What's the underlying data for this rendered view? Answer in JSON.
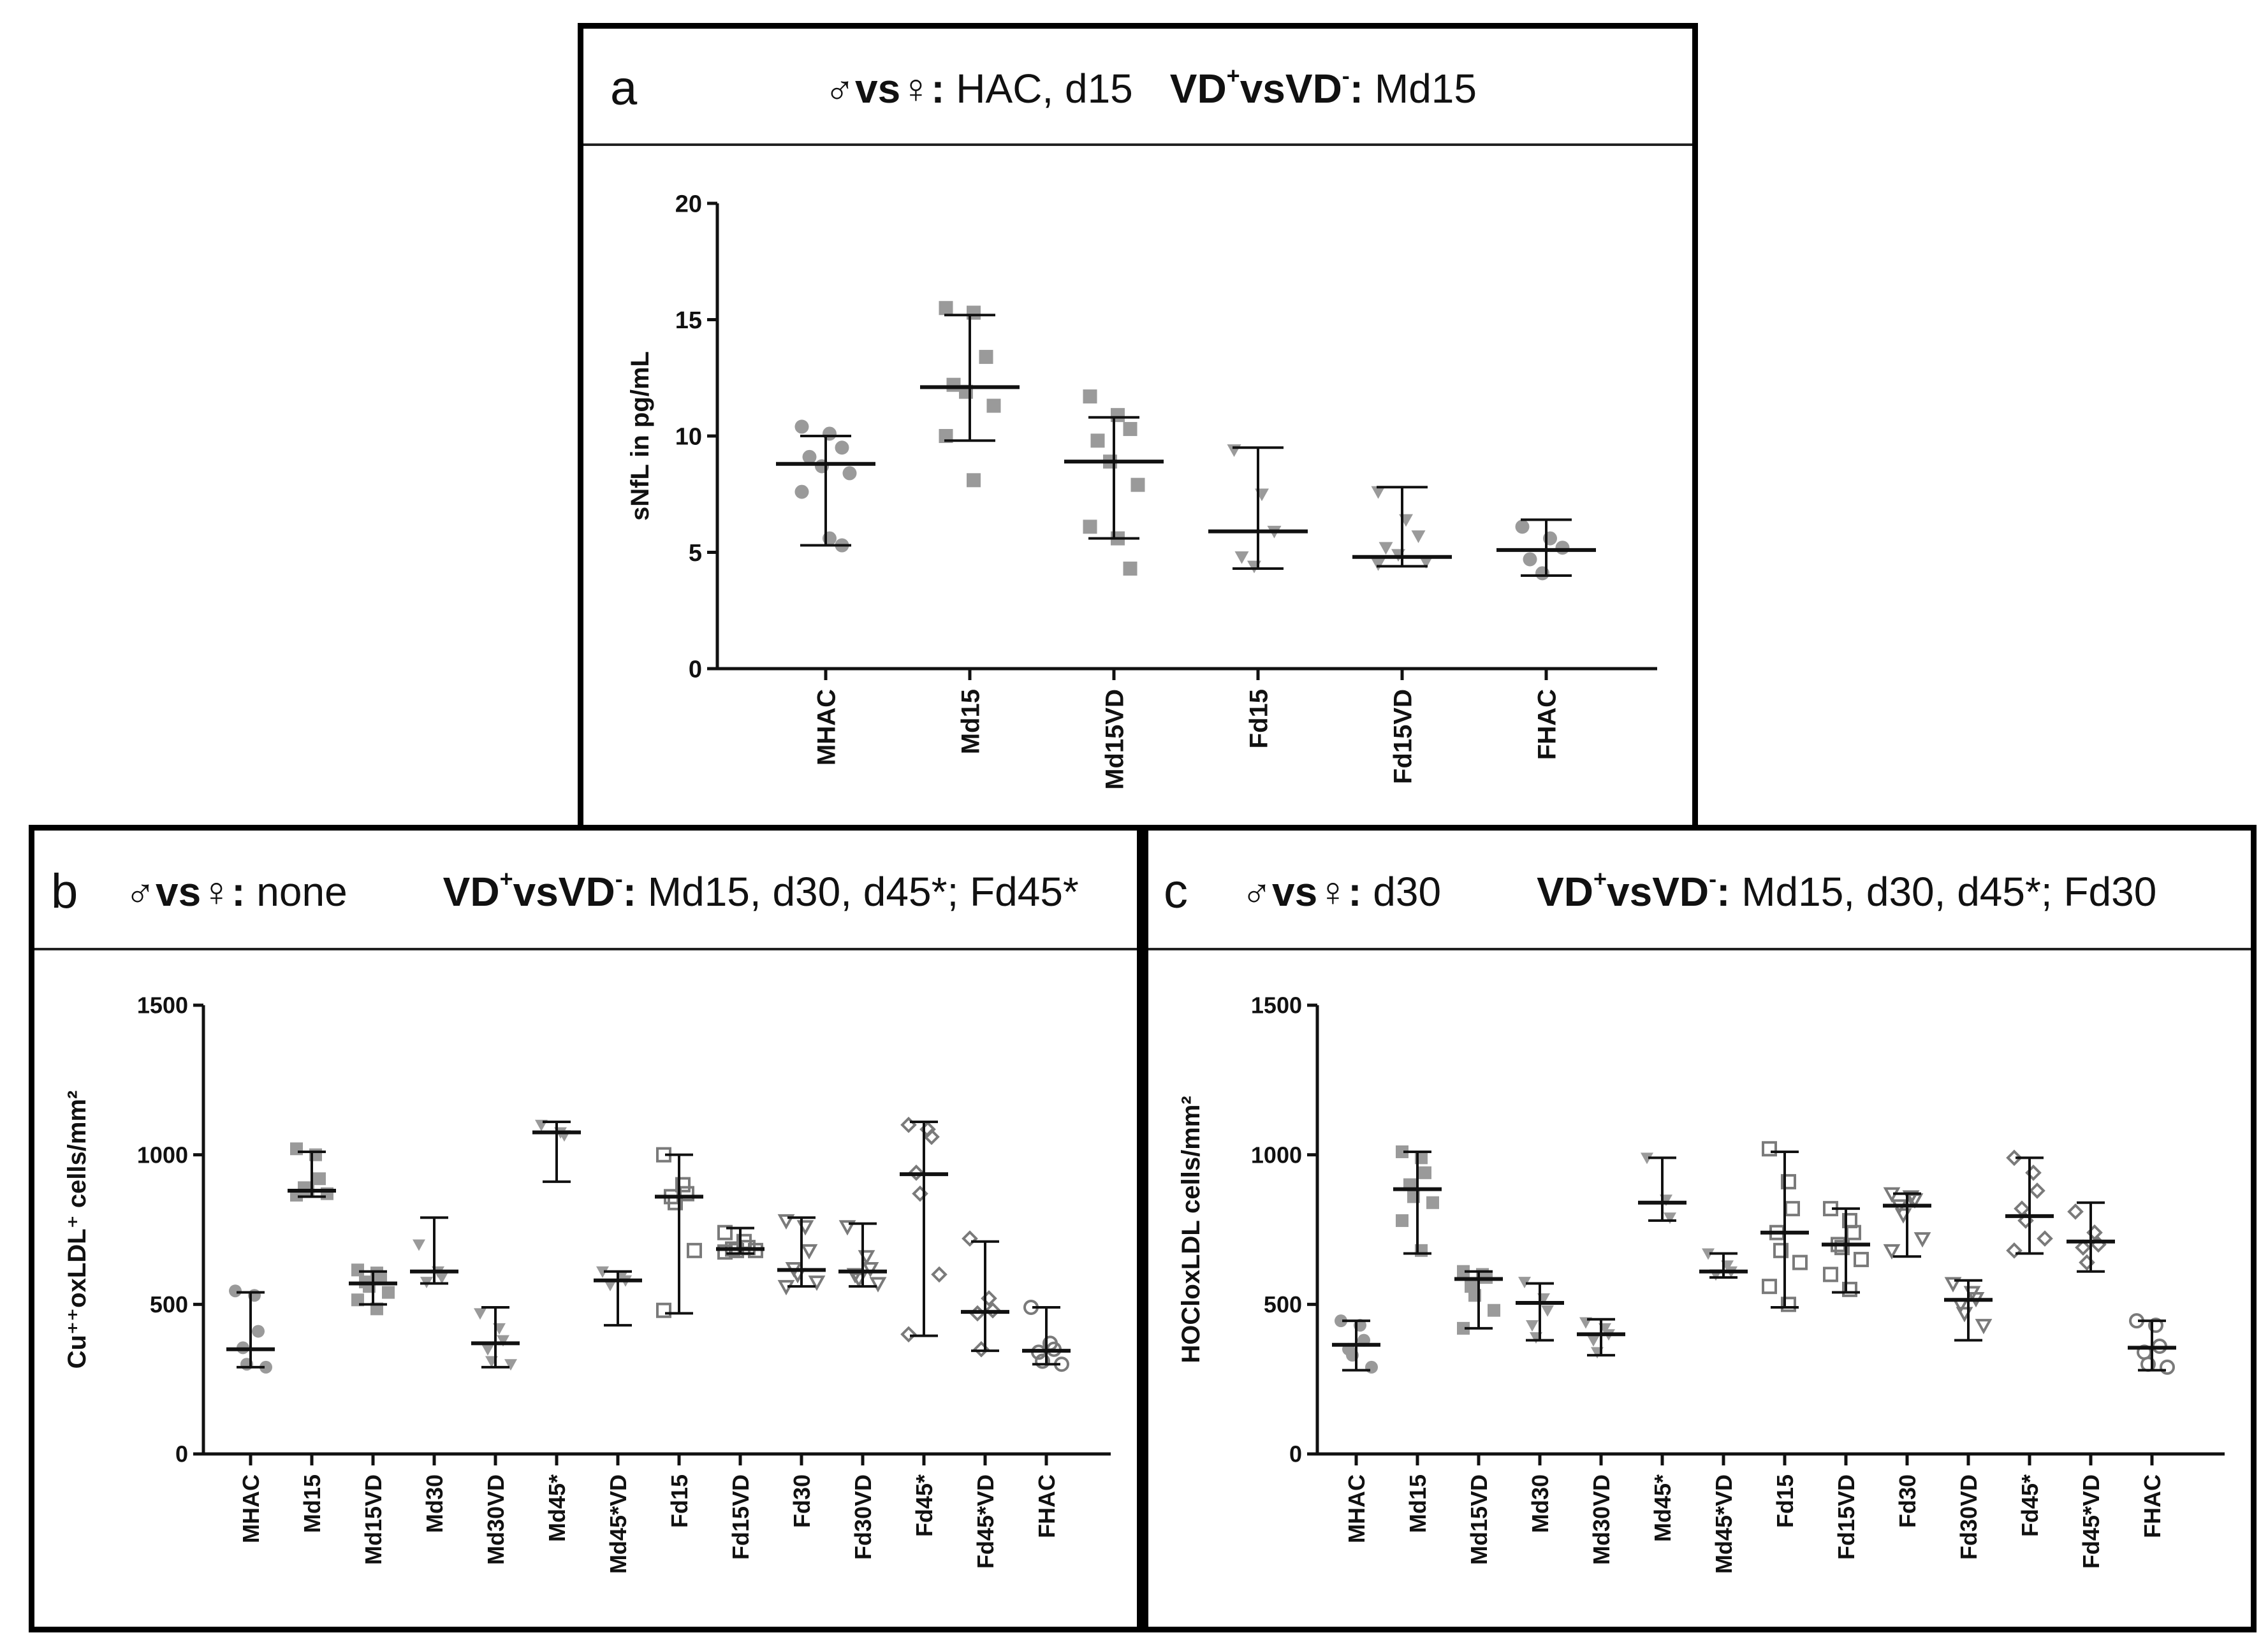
{
  "panels": {
    "a": {
      "letter": "a",
      "sex_label": "♂vs♀:",
      "sex_value": " HAC, d15",
      "vd_pos": "VD",
      "vd_sup_pos": "+",
      "vs": "vs",
      "vd_neg": "VD",
      "vd_sup_neg": "-",
      "vd_colon": ":",
      "vd_value": " Md15"
    },
    "b": {
      "letter": "b",
      "sex_label": "♂vs♀:",
      "sex_value": " none",
      "vd_pos": "VD",
      "vd_sup_pos": "+",
      "vs": "vs",
      "vd_neg": "VD",
      "vd_sup_neg": "-",
      "vd_colon": ":",
      "vd_value": " Md15, d30, d45*; Fd45*"
    },
    "c": {
      "letter": "c",
      "sex_label": "♂vs♀:",
      "sex_value": " d30",
      "vd_pos": "VD",
      "vd_sup_pos": "+",
      "vs": "vs",
      "vd_neg": "VD",
      "vd_sup_neg": "-",
      "vd_colon": ":",
      "vd_value": " Md15, d30, d45*; Fd30"
    }
  },
  "chart_data": [
    {
      "id": "a",
      "type": "scatter",
      "ylabel": "sNfL in pg/mL",
      "ylim": [
        0,
        20
      ],
      "yticks": [
        0,
        5,
        10,
        15,
        20
      ],
      "categories": [
        "MHAC",
        "Md15",
        "Md15VD",
        "Fd15",
        "Fd15VD",
        "FHAC"
      ],
      "groups": [
        {
          "name": "MHAC",
          "marker": "circle-filled",
          "color": "#9a9a9a",
          "points": [
            10.4,
            10.1,
            9.5,
            9.1,
            8.7,
            8.4,
            7.6,
            5.6,
            5.3
          ],
          "median": 8.8,
          "ci": [
            5.3,
            10.0
          ]
        },
        {
          "name": "Md15",
          "marker": "square-filled",
          "color": "#9a9a9a",
          "points": [
            15.5,
            15.3,
            13.4,
            12.2,
            11.9,
            11.3,
            10.0,
            8.1
          ],
          "median": 12.1,
          "ci": [
            9.8,
            15.2
          ]
        },
        {
          "name": "Md15VD",
          "marker": "square-filled",
          "color": "#9a9a9a",
          "points": [
            11.7,
            10.9,
            10.3,
            9.8,
            8.9,
            7.9,
            6.1,
            5.6,
            4.3
          ],
          "median": 8.9,
          "ci": [
            5.6,
            10.8
          ]
        },
        {
          "name": "Fd15",
          "marker": "triangle-down-filled",
          "color": "#9a9a9a",
          "points": [
            9.4,
            7.5,
            5.9,
            4.8,
            4.4
          ],
          "median": 5.9,
          "ci": [
            4.3,
            9.5
          ]
        },
        {
          "name": "Fd15VD",
          "marker": "triangle-down-filled",
          "color": "#9a9a9a",
          "points": [
            7.6,
            6.4,
            5.7,
            5.2,
            4.9,
            4.6,
            4.5
          ],
          "median": 4.8,
          "ci": [
            4.4,
            7.8
          ]
        },
        {
          "name": "FHAC",
          "marker": "circle-filled",
          "color": "#9a9a9a",
          "points": [
            6.1,
            5.6,
            5.2,
            4.7,
            4.1
          ],
          "median": 5.1,
          "ci": [
            4.0,
            6.4
          ]
        }
      ]
    },
    {
      "id": "b",
      "type": "scatter",
      "ylabel": "Cu⁺⁺oxLDL⁺ cells/mm²",
      "ylim": [
        0,
        1500
      ],
      "yticks": [
        0,
        500,
        1000,
        1500
      ],
      "categories": [
        "MHAC",
        "Md15",
        "Md15VD",
        "Md30",
        "Md30VD",
        "Md45*",
        "Md45*VD",
        "Fd15",
        "Fd15VD",
        "Fd30",
        "Fd30VD",
        "Fd45*",
        "Fd45*VD",
        "FHAC"
      ],
      "groups": [
        {
          "name": "MHAC",
          "marker": "circle-filled",
          "color": "#9a9a9a",
          "points": [
            545,
            530,
            410,
            355,
            300,
            290
          ],
          "median": 350,
          "ci": [
            290,
            540
          ]
        },
        {
          "name": "Md15",
          "marker": "square-filled",
          "color": "#9a9a9a",
          "points": [
            1020,
            1000,
            920,
            890,
            880,
            870,
            865
          ],
          "median": 880,
          "ci": [
            860,
            1010
          ]
        },
        {
          "name": "Md15VD",
          "marker": "square-filled",
          "color": "#9a9a9a",
          "points": [
            615,
            605,
            590,
            575,
            560,
            540,
            515,
            485
          ],
          "median": 570,
          "ci": [
            500,
            610
          ]
        },
        {
          "name": "Md30",
          "marker": "triangle-down-filled",
          "color": "#9a9a9a",
          "points": [
            700,
            610,
            590,
            575
          ],
          "median": 610,
          "ci": [
            570,
            790
          ]
        },
        {
          "name": "Md30VD",
          "marker": "triangle-down-filled",
          "color": "#9a9a9a",
          "points": [
            470,
            420,
            380,
            350,
            310,
            300
          ],
          "median": 370,
          "ci": [
            290,
            490
          ]
        },
        {
          "name": "Md45*",
          "marker": "triangle-down-filled",
          "color": "#9a9a9a",
          "points": [
            1100,
            1075,
            1065
          ],
          "median": 1075,
          "ci": [
            910,
            1110
          ]
        },
        {
          "name": "Md45*VD",
          "marker": "triangle-down-filled",
          "color": "#9a9a9a",
          "points": [
            610,
            595,
            580,
            565
          ],
          "median": 580,
          "ci": [
            430,
            610
          ]
        },
        {
          "name": "Fd15",
          "marker": "square-open",
          "color": "#7a7a7a",
          "points": [
            1000,
            900,
            870,
            860,
            840,
            680,
            480
          ],
          "median": 860,
          "ci": [
            470,
            1000
          ]
        },
        {
          "name": "Fd15VD",
          "marker": "square-open",
          "color": "#7a7a7a",
          "points": [
            740,
            710,
            690,
            685,
            680,
            680,
            675
          ],
          "median": 685,
          "ci": [
            670,
            755
          ]
        },
        {
          "name": "Fd30",
          "marker": "triangle-down-open",
          "color": "#7a7a7a",
          "points": [
            780,
            760,
            680,
            620,
            600,
            575,
            560
          ],
          "median": 615,
          "ci": [
            560,
            790
          ]
        },
        {
          "name": "Fd30VD",
          "marker": "triangle-down-open",
          "color": "#7a7a7a",
          "points": [
            760,
            660,
            620,
            600,
            585,
            570
          ],
          "median": 610,
          "ci": [
            560,
            770
          ]
        },
        {
          "name": "Fd45*",
          "marker": "diamond-open",
          "color": "#7a7a7a",
          "points": [
            1100,
            1085,
            1060,
            940,
            870,
            600,
            400
          ],
          "median": 935,
          "ci": [
            395,
            1110
          ]
        },
        {
          "name": "Fd45*VD",
          "marker": "diamond-open",
          "color": "#7a7a7a",
          "points": [
            720,
            520,
            480,
            470,
            350
          ],
          "median": 475,
          "ci": [
            345,
            710
          ]
        },
        {
          "name": "FHAC",
          "marker": "circle-open",
          "color": "#7a7a7a",
          "points": [
            490,
            370,
            350,
            340,
            310,
            300
          ],
          "median": 345,
          "ci": [
            300,
            490
          ]
        }
      ]
    },
    {
      "id": "c",
      "type": "scatter",
      "ylabel": "HOCloxLDL cells/mm²",
      "ylim": [
        0,
        1500
      ],
      "yticks": [
        0,
        500,
        1000,
        1500
      ],
      "categories": [
        "MHAC",
        "Md15",
        "Md15VD",
        "Md30",
        "Md30VD",
        "Md45*",
        "Md45*VD",
        "Fd15",
        "Fd15VD",
        "Fd30",
        "Fd30VD",
        "Fd45*",
        "Fd45*VD",
        "FHAC"
      ],
      "groups": [
        {
          "name": "MHAC",
          "marker": "circle-filled",
          "color": "#9a9a9a",
          "points": [
            445,
            430,
            380,
            350,
            330,
            290
          ],
          "median": 365,
          "ci": [
            280,
            445
          ]
        },
        {
          "name": "Md15",
          "marker": "square-filled",
          "color": "#9a9a9a",
          "points": [
            1010,
            990,
            940,
            900,
            860,
            840,
            780,
            680
          ],
          "median": 885,
          "ci": [
            670,
            1010
          ]
        },
        {
          "name": "Md15VD",
          "marker": "square-filled",
          "color": "#9a9a9a",
          "points": [
            610,
            600,
            590,
            560,
            530,
            480,
            420
          ],
          "median": 585,
          "ci": [
            420,
            610
          ]
        },
        {
          "name": "Md30",
          "marker": "triangle-down-filled",
          "color": "#9a9a9a",
          "points": [
            575,
            520,
            480,
            430,
            390
          ],
          "median": 505,
          "ci": [
            380,
            570
          ]
        },
        {
          "name": "Md30VD",
          "marker": "triangle-down-filled",
          "color": "#9a9a9a",
          "points": [
            440,
            420,
            400,
            380,
            340
          ],
          "median": 400,
          "ci": [
            330,
            450
          ]
        },
        {
          "name": "Md45*",
          "marker": "triangle-down-filled",
          "color": "#9a9a9a",
          "points": [
            990,
            850,
            790
          ],
          "median": 840,
          "ci": [
            780,
            990
          ]
        },
        {
          "name": "Md45*VD",
          "marker": "triangle-down-filled",
          "color": "#9a9a9a",
          "points": [
            670,
            630,
            610,
            600
          ],
          "median": 610,
          "ci": [
            590,
            670
          ]
        },
        {
          "name": "Fd15",
          "marker": "square-open",
          "color": "#7a7a7a",
          "points": [
            1020,
            910,
            820,
            740,
            680,
            640,
            560,
            500
          ],
          "median": 740,
          "ci": [
            490,
            1010
          ]
        },
        {
          "name": "Fd15VD",
          "marker": "square-open",
          "color": "#7a7a7a",
          "points": [
            820,
            780,
            740,
            700,
            690,
            650,
            600,
            550
          ],
          "median": 700,
          "ci": [
            540,
            820
          ]
        },
        {
          "name": "Fd30",
          "marker": "triangle-down-open",
          "color": "#7a7a7a",
          "points": [
            870,
            860,
            850,
            830,
            800,
            720,
            680
          ],
          "median": 830,
          "ci": [
            660,
            870
          ]
        },
        {
          "name": "Fd30VD",
          "marker": "triangle-down-open",
          "color": "#7a7a7a",
          "points": [
            570,
            540,
            520,
            500,
            470,
            430
          ],
          "median": 515,
          "ci": [
            380,
            580
          ]
        },
        {
          "name": "Fd45*",
          "marker": "diamond-open",
          "color": "#7a7a7a",
          "points": [
            990,
            940,
            880,
            820,
            780,
            720,
            680
          ],
          "median": 795,
          "ci": [
            670,
            990
          ]
        },
        {
          "name": "Fd45*VD",
          "marker": "diamond-open",
          "color": "#7a7a7a",
          "points": [
            810,
            740,
            700,
            690,
            640
          ],
          "median": 710,
          "ci": [
            610,
            840
          ]
        },
        {
          "name": "FHAC",
          "marker": "circle-open",
          "color": "#7a7a7a",
          "points": [
            445,
            430,
            360,
            340,
            300,
            290
          ],
          "median": 355,
          "ci": [
            280,
            445
          ]
        }
      ]
    }
  ]
}
